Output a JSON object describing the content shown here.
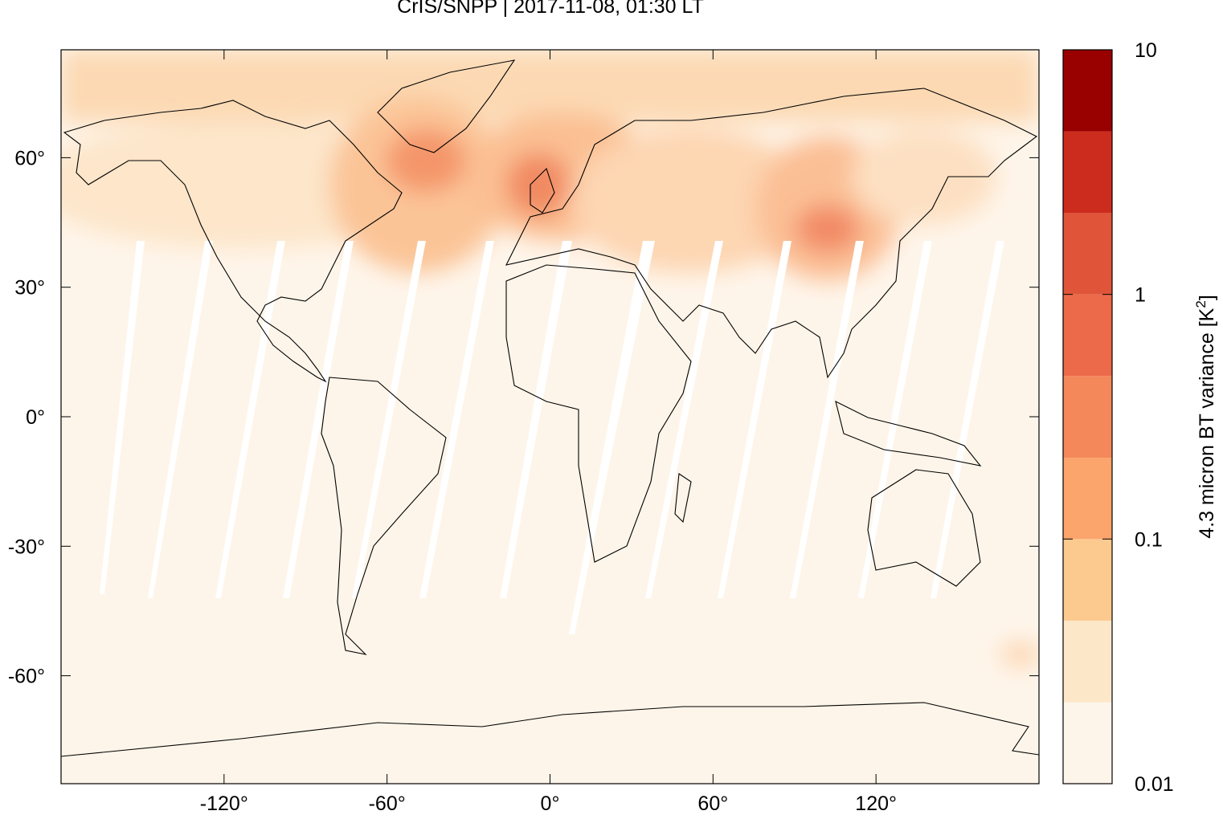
{
  "title": "CrIS/SNPP | 2017-11-08, 01:30 LT",
  "map": {
    "lon_range": [
      -180,
      180
    ],
    "lat_range": [
      -85,
      85
    ],
    "lon_ticks": [
      {
        "value": -120,
        "label": "-120°"
      },
      {
        "value": -60,
        "label": "-60°"
      },
      {
        "value": 0,
        "label": "0°"
      },
      {
        "value": 60,
        "label": "60°"
      },
      {
        "value": 120,
        "label": "120°"
      }
    ],
    "lat_ticks": [
      {
        "value": 60,
        "label": "60°"
      },
      {
        "value": 30,
        "label": "30°"
      },
      {
        "value": 0,
        "label": "0°"
      },
      {
        "value": -30,
        "label": "-30°"
      },
      {
        "value": -60,
        "label": "-60°"
      }
    ]
  },
  "colorbar": {
    "label": "4.3 micron BT variance [K",
    "label_sup": "2",
    "label_end": "]",
    "log": true,
    "range": [
      0.01,
      10
    ],
    "ticks": [
      0.01,
      0.1,
      1,
      10
    ],
    "bounds": [
      0.01,
      0.0215,
      0.0464,
      0.1,
      0.215,
      0.464,
      1,
      2.15,
      4.64,
      10
    ],
    "colors": [
      "#fef5ea",
      "#fde7c9",
      "#fcc98f",
      "#fba46c",
      "#f4885a",
      "#ec6a4a",
      "#e05539",
      "#cc2c1d",
      "#990000"
    ]
  }
}
